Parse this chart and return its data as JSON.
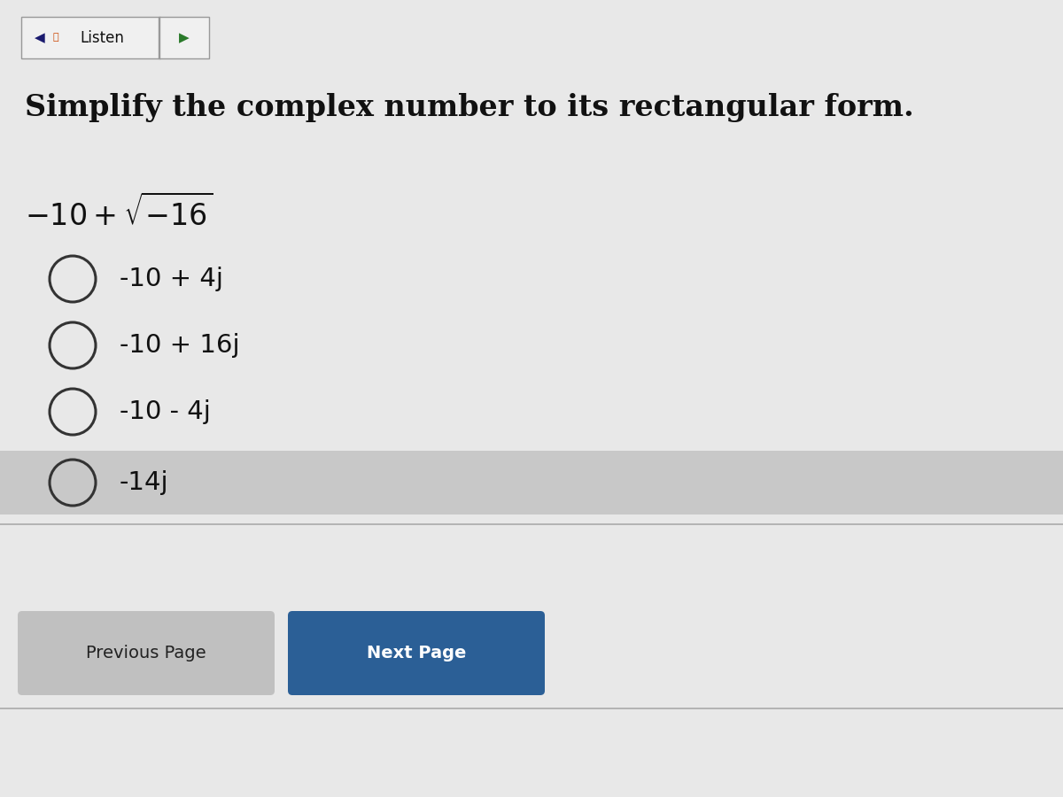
{
  "bg_color": "#e2e2e2",
  "content_bg": "#efefef",
  "listen_btn_text": "Listen",
  "listen_btn_color": "#f0f0f0",
  "listen_btn_border": "#999999",
  "title": "Simplify the complex number to its rectangular form.",
  "options": [
    "-10 + 4j",
    "-10 + 16j",
    "-10 - 4j",
    "-14j"
  ],
  "last_option_bg": "#c8c8c8",
  "circle_color": "#333333",
  "prev_btn_text": "Previous Page",
  "prev_btn_color": "#c0c0c0",
  "next_btn_text": "Next Page",
  "next_btn_color": "#2b5f96",
  "next_btn_text_color": "#ffffff",
  "prev_btn_text_color": "#222222",
  "text_color": "#111111",
  "title_fontsize": 24,
  "option_fontsize": 21,
  "problem_fontsize": 21,
  "speaker_color": "#1a1a6e",
  "wave_color": "#cc4400",
  "arrow_color": "#2a7a2a"
}
